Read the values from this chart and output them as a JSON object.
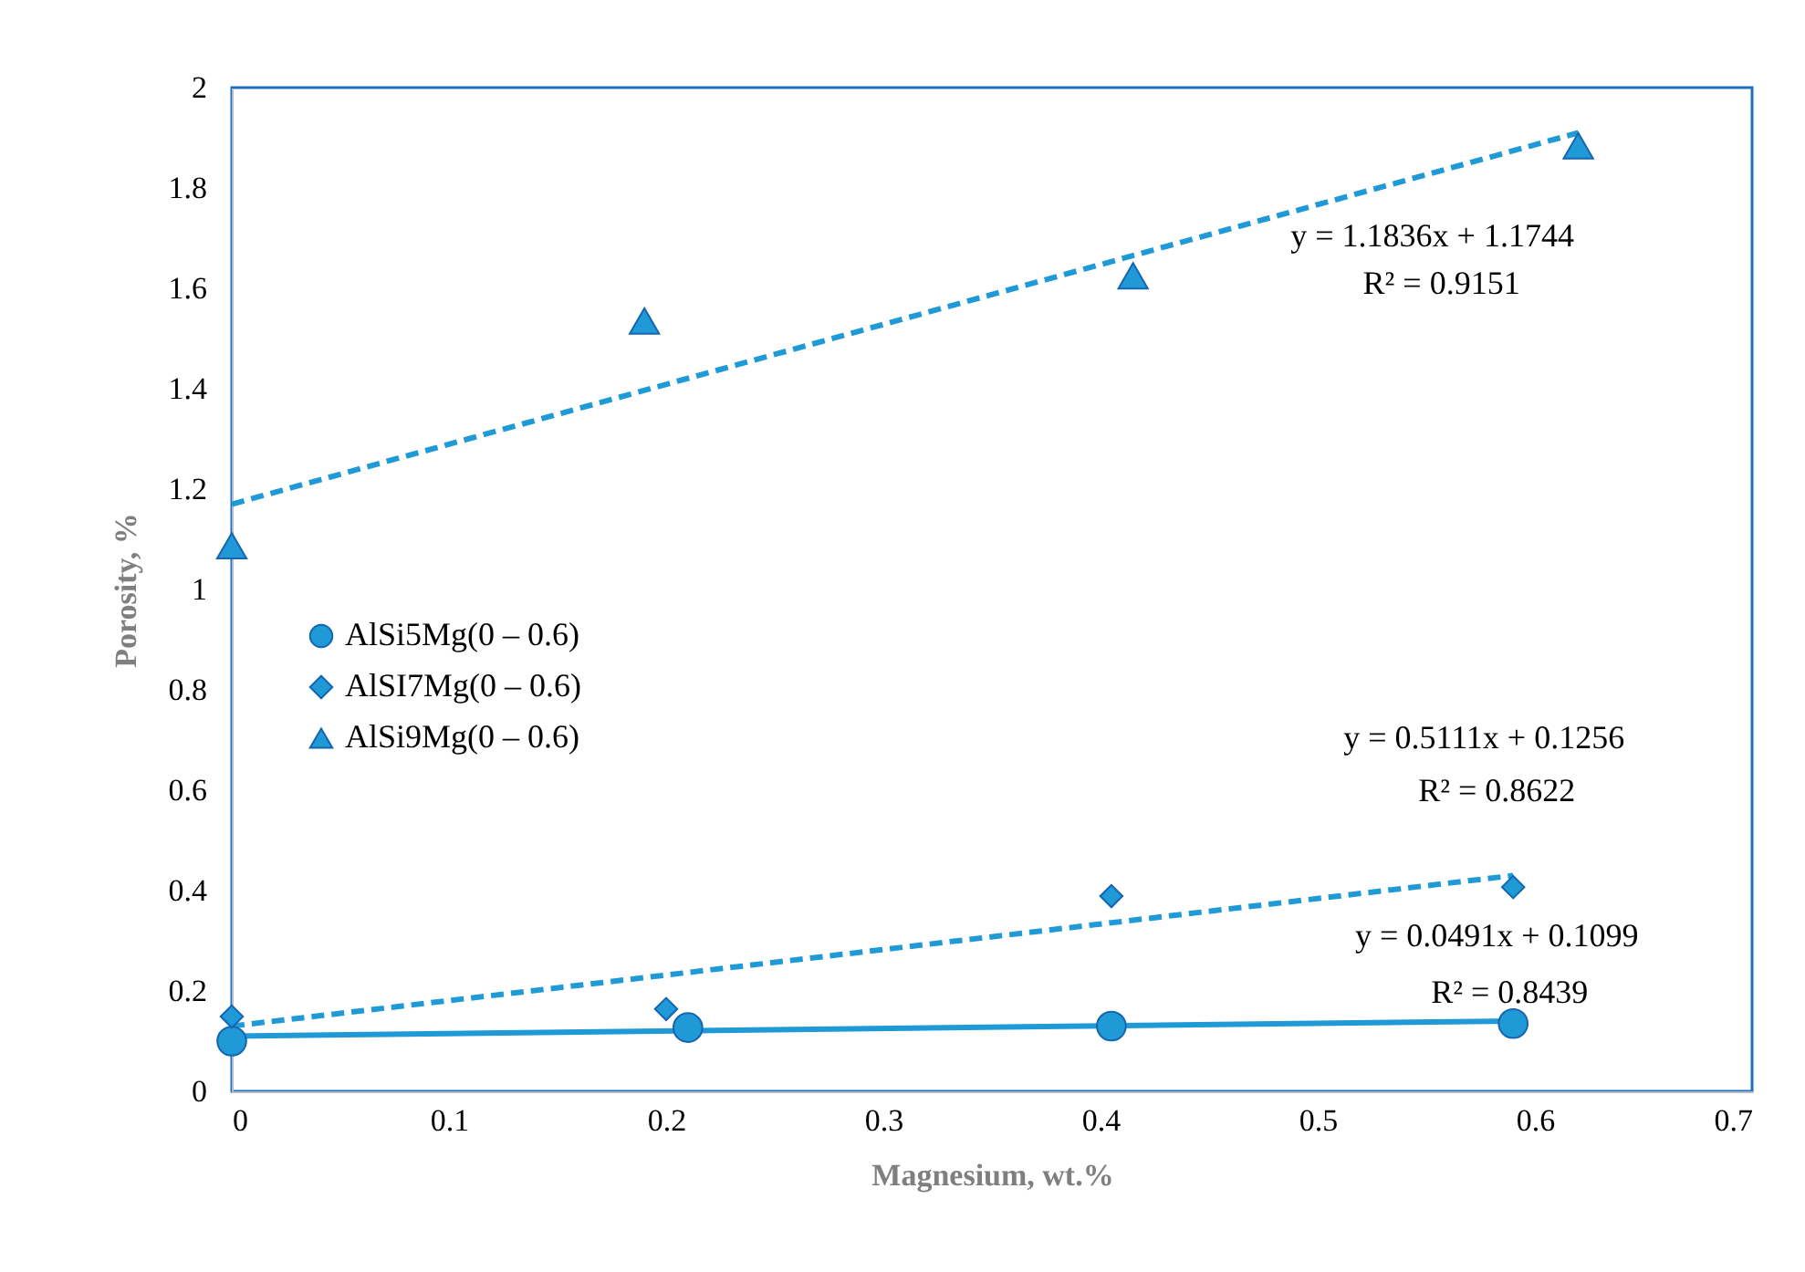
{
  "chart_data": {
    "type": "scatter",
    "xlabel": "Magnesium, wt.%",
    "ylabel": "Porosity, %",
    "xlim": [
      0,
      0.7
    ],
    "xticks": [
      0,
      0.1,
      0.2,
      0.3,
      0.4,
      0.5,
      0.6,
      0.7
    ],
    "ylim": [
      0,
      2
    ],
    "yticks": [
      0,
      0.2,
      0.4,
      0.6,
      0.8,
      1,
      1.2,
      1.4,
      1.6,
      1.8,
      2
    ],
    "grid": false,
    "legend": "left",
    "series": [
      {
        "name": "AlSi5Mg(0 – 0.6)",
        "marker": "circle",
        "color": "#1f9ad6",
        "x": [
          0,
          0.21,
          0.405,
          0.59
        ],
        "values": [
          0.1,
          0.127,
          0.13,
          0.135
        ]
      },
      {
        "name": "AlSI7Mg(0 – 0.6)",
        "marker": "diamond",
        "color": "#1f9ad6",
        "x": [
          0,
          0.2,
          0.405,
          0.59
        ],
        "values": [
          0.149,
          0.164,
          0.389,
          0.407
        ]
      },
      {
        "name": "AlSi9Mg(0 – 0.6)",
        "marker": "triangle",
        "color": "#1f9ad6",
        "x": [
          0,
          0.19,
          0.415,
          0.62
        ],
        "values": [
          1.087,
          1.535,
          1.625,
          1.884
        ]
      },
      {
        "type": "line",
        "line_style": "dashed",
        "color": "#1f9ad6",
        "x": [
          0,
          0.62
        ],
        "values": [
          1.17,
          1.91
        ]
      },
      {
        "type": "line",
        "line_style": "dashed",
        "color": "#1f9ad6",
        "x": [
          0,
          0.59
        ],
        "values": [
          0.13,
          0.43
        ]
      },
      {
        "type": "line",
        "line_style": "solid",
        "color": "#1f9ad6",
        "x": [
          0,
          0.59
        ],
        "values": [
          0.11,
          0.14
        ]
      }
    ],
    "annotations": [
      "y = 1.1836x + 1.1744",
      "R² = 0.9151",
      "y = 0.5111x + 0.1256",
      "R² = 0.8622",
      "y = 0.0491x + 0.1099",
      "R² = 0.8439"
    ]
  }
}
